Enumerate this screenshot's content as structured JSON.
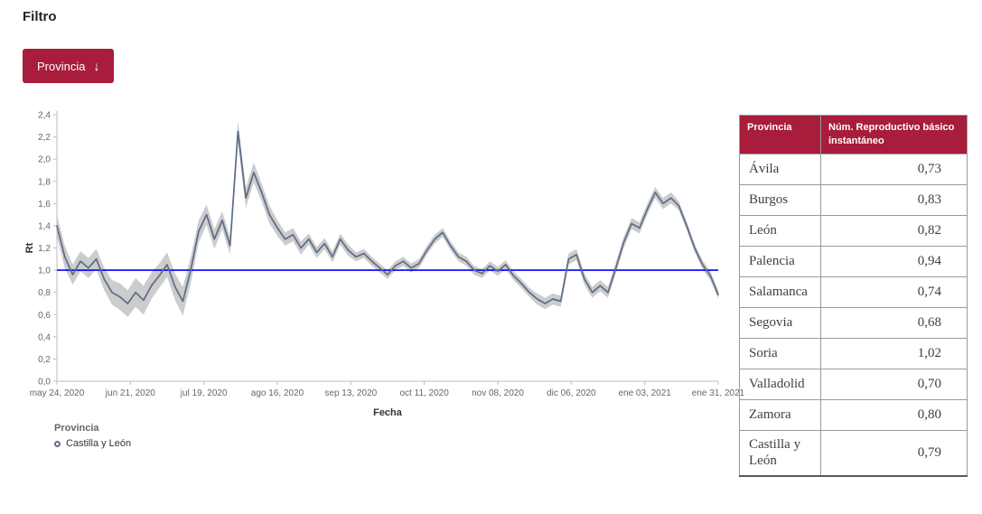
{
  "page": {
    "title": "Filtro"
  },
  "filter": {
    "button_label": "Provincia",
    "arrow": "↓"
  },
  "colors": {
    "accent": "#a71d3b",
    "line": "#5b6d88",
    "band": "#c3c3c3",
    "ref_line": "#0000ff"
  },
  "chart_data": {
    "type": "line",
    "title": "",
    "xlabel": "Fecha",
    "ylabel": "Rt",
    "ylim": [
      0,
      2.4
    ],
    "ytick_step": 0.2,
    "y_tick_labels": [
      "0,0",
      "0,2",
      "0,4",
      "0,6",
      "0,8",
      "1,0",
      "1,2",
      "1,4",
      "1,6",
      "1,8",
      "2,0",
      "2,2",
      "2,4"
    ],
    "x_tick_labels": [
      "may 24, 2020",
      "jun 21, 2020",
      "jul 19, 2020",
      "ago 16, 2020",
      "sep 13, 2020",
      "oct 11, 2020",
      "nov 08, 2020",
      "dic 06, 2020",
      "ene 03, 2021",
      "ene 31, 2021"
    ],
    "x_total_days": 252,
    "tick_interval_days": 28,
    "x_step_days": 3,
    "reference_line": {
      "y": 1.0
    },
    "legend": {
      "title": "Provincia",
      "items": [
        "Castilla y León"
      ]
    },
    "series": [
      {
        "name": "Castilla y León",
        "values": [
          1.4,
          1.12,
          0.96,
          1.08,
          1.02,
          1.1,
          0.92,
          0.8,
          0.76,
          0.7,
          0.8,
          0.73,
          0.86,
          0.95,
          1.05,
          0.85,
          0.72,
          1.0,
          1.35,
          1.5,
          1.28,
          1.45,
          1.22,
          2.25,
          1.65,
          1.88,
          1.7,
          1.5,
          1.38,
          1.28,
          1.32,
          1.2,
          1.28,
          1.16,
          1.24,
          1.12,
          1.28,
          1.18,
          1.12,
          1.15,
          1.08,
          1.02,
          0.96,
          1.04,
          1.08,
          1.02,
          1.06,
          1.18,
          1.28,
          1.34,
          1.22,
          1.12,
          1.08,
          1.0,
          0.97,
          1.04,
          0.99,
          1.05,
          0.95,
          0.88,
          0.8,
          0.74,
          0.7,
          0.74,
          0.72,
          1.1,
          1.14,
          0.92,
          0.8,
          0.86,
          0.8,
          1.02,
          1.25,
          1.42,
          1.38,
          1.55,
          1.7,
          1.6,
          1.65,
          1.58,
          1.4,
          1.2,
          1.05,
          0.95,
          0.78
        ],
        "band_halfwidth": [
          0.1,
          0.1,
          0.09,
          0.09,
          0.09,
          0.09,
          0.1,
          0.11,
          0.12,
          0.12,
          0.13,
          0.13,
          0.12,
          0.11,
          0.11,
          0.12,
          0.13,
          0.12,
          0.1,
          0.09,
          0.09,
          0.08,
          0.08,
          0.1,
          0.09,
          0.09,
          0.08,
          0.08,
          0.07,
          0.06,
          0.06,
          0.06,
          0.05,
          0.05,
          0.05,
          0.05,
          0.05,
          0.05,
          0.04,
          0.04,
          0.04,
          0.04,
          0.04,
          0.04,
          0.04,
          0.04,
          0.04,
          0.04,
          0.04,
          0.04,
          0.04,
          0.04,
          0.04,
          0.04,
          0.04,
          0.04,
          0.04,
          0.04,
          0.04,
          0.04,
          0.04,
          0.05,
          0.05,
          0.05,
          0.05,
          0.05,
          0.05,
          0.05,
          0.05,
          0.05,
          0.05,
          0.05,
          0.05,
          0.05,
          0.05,
          0.05,
          0.05,
          0.05,
          0.05,
          0.04,
          0.04,
          0.04,
          0.04,
          0.04,
          0.04
        ]
      }
    ]
  },
  "table": {
    "columns": [
      "Provincia",
      "Núm. Reproductivo básico instantáneo"
    ],
    "rows": [
      {
        "provincia": "Ávila",
        "valor": "0,73"
      },
      {
        "provincia": "Burgos",
        "valor": "0,83"
      },
      {
        "provincia": "León",
        "valor": "0,82"
      },
      {
        "provincia": "Palencia",
        "valor": "0,94"
      },
      {
        "provincia": "Salamanca",
        "valor": "0,74"
      },
      {
        "provincia": "Segovia",
        "valor": "0,68"
      },
      {
        "provincia": "Soria",
        "valor": "1,02"
      },
      {
        "provincia": "Valladolid",
        "valor": "0,70"
      },
      {
        "provincia": "Zamora",
        "valor": "0,80"
      },
      {
        "provincia": "Castilla y León",
        "valor": "0,79"
      }
    ]
  }
}
